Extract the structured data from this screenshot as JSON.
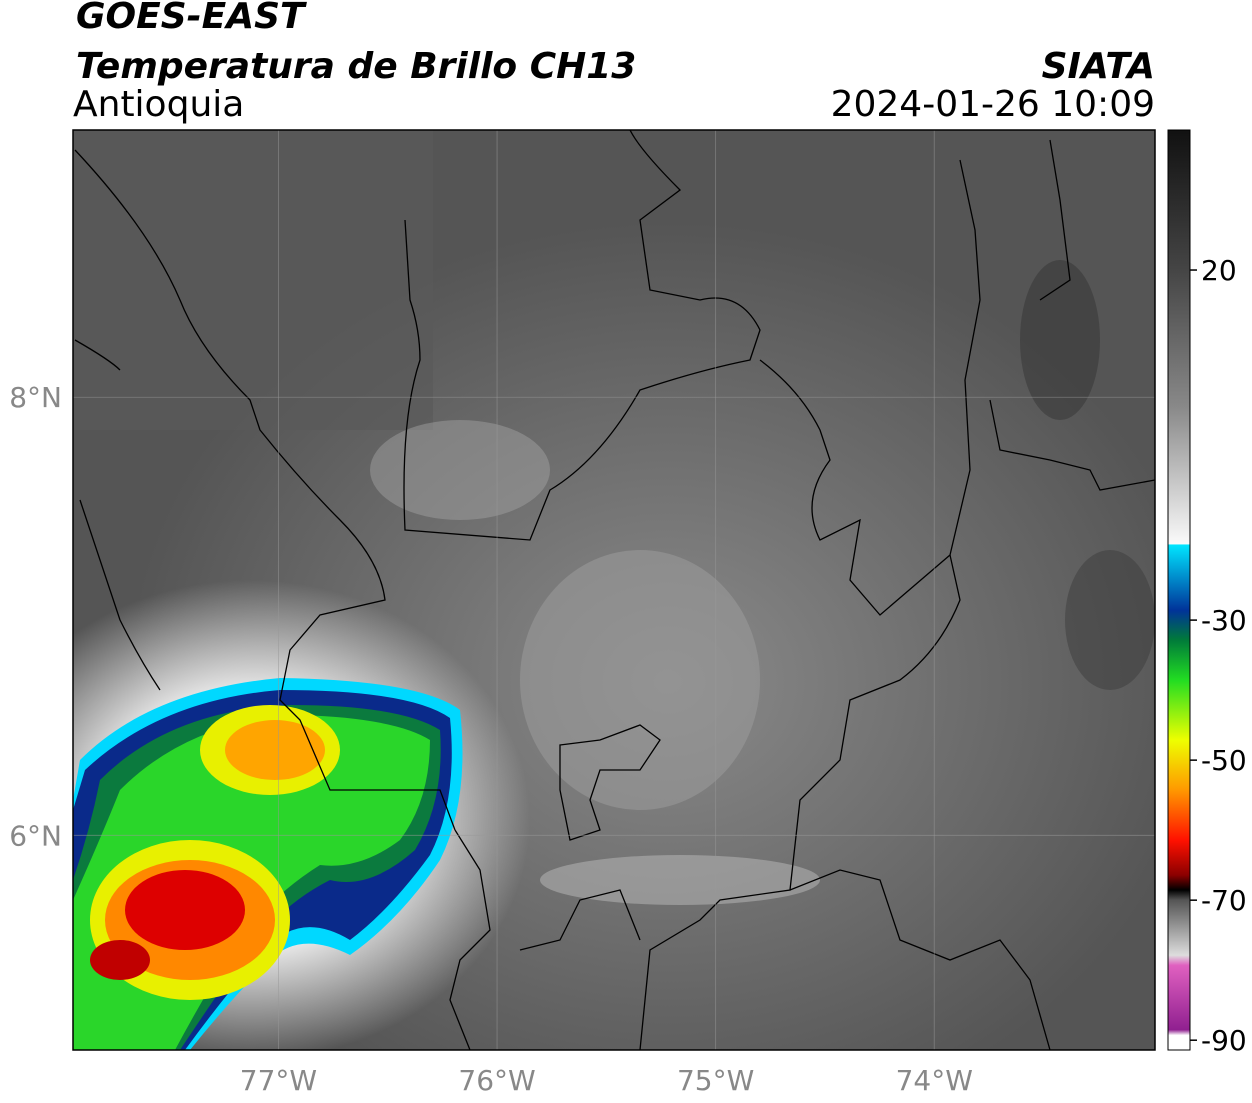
{
  "header": {
    "title": "GOES-EAST",
    "subtitle": "Temperatura de Brillo CH13",
    "region": "Antioquia",
    "source": "SIATA",
    "datetime": "2024-01-26 10:09"
  },
  "map": {
    "xlim": [
      -77.94,
      -72.99
    ],
    "ylim": [
      5.02,
      9.22
    ],
    "xticks": [
      {
        "value": -77,
        "label": "77°W"
      },
      {
        "value": -76,
        "label": "76°W"
      },
      {
        "value": -75,
        "label": "75°W"
      },
      {
        "value": -74,
        "label": "74°W"
      }
    ],
    "yticks": [
      {
        "value": 6,
        "label": "6°N"
      },
      {
        "value": 8,
        "label": "8°N"
      }
    ],
    "grid": true
  },
  "colorbar": {
    "lim": [
      -91.4,
      40
    ],
    "ticks": [
      20,
      -30,
      -50,
      -70,
      -90
    ]
  }
}
